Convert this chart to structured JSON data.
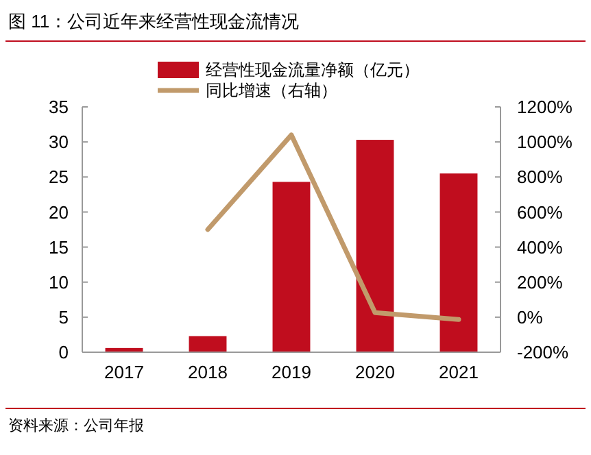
{
  "chart_data": {
    "type": "bar",
    "title": "图 11：公司近年来经营性现金流情况",
    "annotations": [
      "资料来源：公司年报"
    ],
    "categories": [
      "2017",
      "2018",
      "2019",
      "2020",
      "2021"
    ],
    "series": [
      {
        "name": "经营性现金流量净额（亿元）",
        "color": "#c00d1e",
        "values": [
          0.6,
          2.3,
          24.3,
          30.3,
          25.5
        ]
      },
      {
        "name": "同比增速（右轴）",
        "type": "line",
        "axis": "y2",
        "color": "#c19a6b",
        "values": [
          null,
          500,
          1040,
          26,
          -13
        ]
      }
    ],
    "ylim": [
      0,
      35
    ],
    "yticks": [
      0,
      5,
      10,
      15,
      20,
      25,
      30,
      35
    ],
    "y2lim": [
      -200,
      1200
    ],
    "y2ticks": [
      {
        "value": -200,
        "label": "-200%"
      },
      {
        "value": 0,
        "label": "0%"
      },
      {
        "value": 200,
        "label": "200%"
      },
      {
        "value": 400,
        "label": "400%"
      },
      {
        "value": 600,
        "label": "600%"
      },
      {
        "value": 800,
        "label": "800%"
      },
      {
        "value": 1000,
        "label": "1000%"
      },
      {
        "value": 1200,
        "label": "1200%"
      }
    ],
    "legend": "top",
    "grid": false
  }
}
